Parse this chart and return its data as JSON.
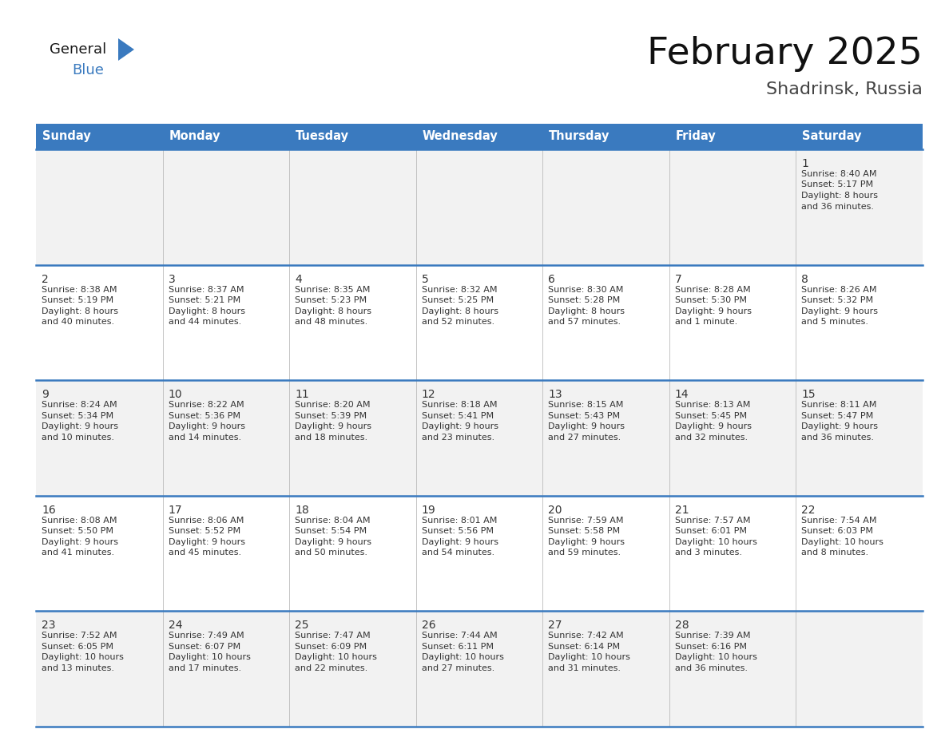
{
  "title": "February 2025",
  "subtitle": "Shadrinsk, Russia",
  "header_color": "#3a7abf",
  "header_text_color": "#FFFFFF",
  "header_font_size": 10.5,
  "days_of_week": [
    "Sunday",
    "Monday",
    "Tuesday",
    "Wednesday",
    "Thursday",
    "Friday",
    "Saturday"
  ],
  "title_fontsize": 34,
  "subtitle_fontsize": 16,
  "day_num_fontsize": 10,
  "info_fontsize": 8.0,
  "row_bg_colors": [
    "#F2F2F2",
    "#FFFFFF"
  ],
  "border_color": "#3a7abf",
  "text_color": "#333333",
  "logo_general_color": "#1a1a1a",
  "logo_blue_color": "#3a7abf",
  "calendar": [
    [
      {
        "day": null,
        "info": []
      },
      {
        "day": null,
        "info": []
      },
      {
        "day": null,
        "info": []
      },
      {
        "day": null,
        "info": []
      },
      {
        "day": null,
        "info": []
      },
      {
        "day": null,
        "info": []
      },
      {
        "day": 1,
        "info": [
          "Sunrise: 8:40 AM",
          "Sunset: 5:17 PM",
          "Daylight: 8 hours",
          "and 36 minutes."
        ]
      }
    ],
    [
      {
        "day": 2,
        "info": [
          "Sunrise: 8:38 AM",
          "Sunset: 5:19 PM",
          "Daylight: 8 hours",
          "and 40 minutes."
        ]
      },
      {
        "day": 3,
        "info": [
          "Sunrise: 8:37 AM",
          "Sunset: 5:21 PM",
          "Daylight: 8 hours",
          "and 44 minutes."
        ]
      },
      {
        "day": 4,
        "info": [
          "Sunrise: 8:35 AM",
          "Sunset: 5:23 PM",
          "Daylight: 8 hours",
          "and 48 minutes."
        ]
      },
      {
        "day": 5,
        "info": [
          "Sunrise: 8:32 AM",
          "Sunset: 5:25 PM",
          "Daylight: 8 hours",
          "and 52 minutes."
        ]
      },
      {
        "day": 6,
        "info": [
          "Sunrise: 8:30 AM",
          "Sunset: 5:28 PM",
          "Daylight: 8 hours",
          "and 57 minutes."
        ]
      },
      {
        "day": 7,
        "info": [
          "Sunrise: 8:28 AM",
          "Sunset: 5:30 PM",
          "Daylight: 9 hours",
          "and 1 minute."
        ]
      },
      {
        "day": 8,
        "info": [
          "Sunrise: 8:26 AM",
          "Sunset: 5:32 PM",
          "Daylight: 9 hours",
          "and 5 minutes."
        ]
      }
    ],
    [
      {
        "day": 9,
        "info": [
          "Sunrise: 8:24 AM",
          "Sunset: 5:34 PM",
          "Daylight: 9 hours",
          "and 10 minutes."
        ]
      },
      {
        "day": 10,
        "info": [
          "Sunrise: 8:22 AM",
          "Sunset: 5:36 PM",
          "Daylight: 9 hours",
          "and 14 minutes."
        ]
      },
      {
        "day": 11,
        "info": [
          "Sunrise: 8:20 AM",
          "Sunset: 5:39 PM",
          "Daylight: 9 hours",
          "and 18 minutes."
        ]
      },
      {
        "day": 12,
        "info": [
          "Sunrise: 8:18 AM",
          "Sunset: 5:41 PM",
          "Daylight: 9 hours",
          "and 23 minutes."
        ]
      },
      {
        "day": 13,
        "info": [
          "Sunrise: 8:15 AM",
          "Sunset: 5:43 PM",
          "Daylight: 9 hours",
          "and 27 minutes."
        ]
      },
      {
        "day": 14,
        "info": [
          "Sunrise: 8:13 AM",
          "Sunset: 5:45 PM",
          "Daylight: 9 hours",
          "and 32 minutes."
        ]
      },
      {
        "day": 15,
        "info": [
          "Sunrise: 8:11 AM",
          "Sunset: 5:47 PM",
          "Daylight: 9 hours",
          "and 36 minutes."
        ]
      }
    ],
    [
      {
        "day": 16,
        "info": [
          "Sunrise: 8:08 AM",
          "Sunset: 5:50 PM",
          "Daylight: 9 hours",
          "and 41 minutes."
        ]
      },
      {
        "day": 17,
        "info": [
          "Sunrise: 8:06 AM",
          "Sunset: 5:52 PM",
          "Daylight: 9 hours",
          "and 45 minutes."
        ]
      },
      {
        "day": 18,
        "info": [
          "Sunrise: 8:04 AM",
          "Sunset: 5:54 PM",
          "Daylight: 9 hours",
          "and 50 minutes."
        ]
      },
      {
        "day": 19,
        "info": [
          "Sunrise: 8:01 AM",
          "Sunset: 5:56 PM",
          "Daylight: 9 hours",
          "and 54 minutes."
        ]
      },
      {
        "day": 20,
        "info": [
          "Sunrise: 7:59 AM",
          "Sunset: 5:58 PM",
          "Daylight: 9 hours",
          "and 59 minutes."
        ]
      },
      {
        "day": 21,
        "info": [
          "Sunrise: 7:57 AM",
          "Sunset: 6:01 PM",
          "Daylight: 10 hours",
          "and 3 minutes."
        ]
      },
      {
        "day": 22,
        "info": [
          "Sunrise: 7:54 AM",
          "Sunset: 6:03 PM",
          "Daylight: 10 hours",
          "and 8 minutes."
        ]
      }
    ],
    [
      {
        "day": 23,
        "info": [
          "Sunrise: 7:52 AM",
          "Sunset: 6:05 PM",
          "Daylight: 10 hours",
          "and 13 minutes."
        ]
      },
      {
        "day": 24,
        "info": [
          "Sunrise: 7:49 AM",
          "Sunset: 6:07 PM",
          "Daylight: 10 hours",
          "and 17 minutes."
        ]
      },
      {
        "day": 25,
        "info": [
          "Sunrise: 7:47 AM",
          "Sunset: 6:09 PM",
          "Daylight: 10 hours",
          "and 22 minutes."
        ]
      },
      {
        "day": 26,
        "info": [
          "Sunrise: 7:44 AM",
          "Sunset: 6:11 PM",
          "Daylight: 10 hours",
          "and 27 minutes."
        ]
      },
      {
        "day": 27,
        "info": [
          "Sunrise: 7:42 AM",
          "Sunset: 6:14 PM",
          "Daylight: 10 hours",
          "and 31 minutes."
        ]
      },
      {
        "day": 28,
        "info": [
          "Sunrise: 7:39 AM",
          "Sunset: 6:16 PM",
          "Daylight: 10 hours",
          "and 36 minutes."
        ]
      },
      {
        "day": null,
        "info": []
      }
    ]
  ]
}
